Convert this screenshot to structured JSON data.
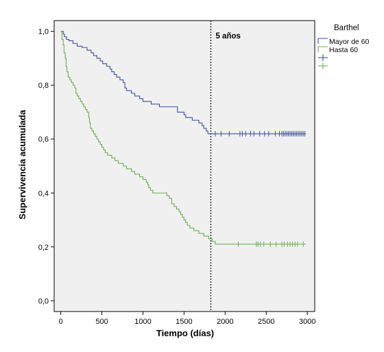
{
  "chart_data": {
    "type": "line",
    "subtype": "kaplan-meier-step",
    "xlabel": "Tiempo (días)",
    "ylabel": "Supervivencia acumulada",
    "xlim": [
      -80,
      3090
    ],
    "ylim": [
      -0.04,
      1.04
    ],
    "x_ticks": [
      {
        "value": 0,
        "label": "0"
      },
      {
        "value": 500,
        "label": "500"
      },
      {
        "value": 1000,
        "label": "1000"
      },
      {
        "value": 1500,
        "label": "1500"
      },
      {
        "value": 2000,
        "label": "2000"
      },
      {
        "value": 2500,
        "label": "2500"
      },
      {
        "value": 3000,
        "label": "3000"
      }
    ],
    "y_ticks": [
      {
        "value": 0.0,
        "label": "0,0"
      },
      {
        "value": 0.2,
        "label": "0,2"
      },
      {
        "value": 0.4,
        "label": "0,4"
      },
      {
        "value": 0.6,
        "label": "0,6"
      },
      {
        "value": 0.8,
        "label": "0,8"
      },
      {
        "value": 1.0,
        "label": "1,0"
      }
    ],
    "grid": false,
    "plot_background": "#f0f0f0",
    "reference_line": {
      "x": 1826,
      "style": "dotted",
      "label": "5 años"
    },
    "legend": {
      "title": "Barthel",
      "position": "right",
      "entries": [
        {
          "label": "Mayor de 60",
          "color": "#3d4fa0",
          "marker": "line"
        },
        {
          "label": "Hasta 60",
          "color": "#6ab04c",
          "marker": "line"
        },
        {
          "label": "",
          "color": "#3d4fa0",
          "marker": "censor"
        },
        {
          "label": "",
          "color": "#6ab04c",
          "marker": "censor"
        }
      ]
    },
    "series": [
      {
        "name": "Mayor de 60",
        "color": "#3d4fa0",
        "steps": [
          [
            0,
            1.0
          ],
          [
            30,
            0.99
          ],
          [
            45,
            0.98
          ],
          [
            70,
            0.97
          ],
          [
            100,
            0.965
          ],
          [
            150,
            0.955
          ],
          [
            200,
            0.945
          ],
          [
            260,
            0.94
          ],
          [
            320,
            0.93
          ],
          [
            370,
            0.92
          ],
          [
            400,
            0.91
          ],
          [
            440,
            0.9
          ],
          [
            480,
            0.89
          ],
          [
            510,
            0.88
          ],
          [
            560,
            0.87
          ],
          [
            600,
            0.86
          ],
          [
            620,
            0.85
          ],
          [
            650,
            0.84
          ],
          [
            680,
            0.83
          ],
          [
            720,
            0.82
          ],
          [
            760,
            0.81
          ],
          [
            780,
            0.79
          ],
          [
            800,
            0.78
          ],
          [
            860,
            0.77
          ],
          [
            900,
            0.76
          ],
          [
            960,
            0.75
          ],
          [
            1000,
            0.74
          ],
          [
            1100,
            0.73
          ],
          [
            1200,
            0.72
          ],
          [
            1330,
            0.72
          ],
          [
            1420,
            0.7
          ],
          [
            1500,
            0.69
          ],
          [
            1520,
            0.68
          ],
          [
            1600,
            0.67
          ],
          [
            1680,
            0.66
          ],
          [
            1720,
            0.65
          ],
          [
            1740,
            0.64
          ],
          [
            1770,
            0.63
          ],
          [
            1790,
            0.62
          ],
          [
            2980,
            0.62
          ]
        ],
        "censored": [
          1880,
          1950,
          2050,
          2180,
          2210,
          2250,
          2310,
          2350,
          2420,
          2480,
          2530,
          2610,
          2660,
          2690,
          2710,
          2730,
          2750,
          2770,
          2790,
          2810,
          2830,
          2850,
          2870,
          2890,
          2910,
          2930,
          2950,
          2970
        ]
      },
      {
        "name": "Hasta 60",
        "color": "#6ab04c",
        "steps": [
          [
            0,
            1.0
          ],
          [
            15,
            0.97
          ],
          [
            30,
            0.95
          ],
          [
            40,
            0.92
          ],
          [
            55,
            0.9
          ],
          [
            65,
            0.87
          ],
          [
            75,
            0.85
          ],
          [
            90,
            0.83
          ],
          [
            110,
            0.82
          ],
          [
            130,
            0.81
          ],
          [
            150,
            0.8
          ],
          [
            170,
            0.79
          ],
          [
            185,
            0.77
          ],
          [
            200,
            0.76
          ],
          [
            220,
            0.75
          ],
          [
            240,
            0.74
          ],
          [
            260,
            0.73
          ],
          [
            280,
            0.72
          ],
          [
            300,
            0.71
          ],
          [
            320,
            0.7
          ],
          [
            340,
            0.68
          ],
          [
            350,
            0.66
          ],
          [
            360,
            0.64
          ],
          [
            380,
            0.63
          ],
          [
            400,
            0.62
          ],
          [
            420,
            0.61
          ],
          [
            440,
            0.6
          ],
          [
            460,
            0.59
          ],
          [
            480,
            0.58
          ],
          [
            500,
            0.57
          ],
          [
            520,
            0.56
          ],
          [
            540,
            0.55
          ],
          [
            570,
            0.54
          ],
          [
            620,
            0.53
          ],
          [
            660,
            0.52
          ],
          [
            700,
            0.51
          ],
          [
            760,
            0.5
          ],
          [
            800,
            0.49
          ],
          [
            860,
            0.48
          ],
          [
            900,
            0.47
          ],
          [
            960,
            0.46
          ],
          [
            1000,
            0.45
          ],
          [
            1040,
            0.44
          ],
          [
            1060,
            0.43
          ],
          [
            1070,
            0.42
          ],
          [
            1090,
            0.41
          ],
          [
            1120,
            0.4
          ],
          [
            1230,
            0.4
          ],
          [
            1290,
            0.39
          ],
          [
            1320,
            0.38
          ],
          [
            1350,
            0.36
          ],
          [
            1380,
            0.35
          ],
          [
            1410,
            0.34
          ],
          [
            1440,
            0.33
          ],
          [
            1460,
            0.32
          ],
          [
            1480,
            0.31
          ],
          [
            1500,
            0.3
          ],
          [
            1520,
            0.29
          ],
          [
            1540,
            0.28
          ],
          [
            1570,
            0.27
          ],
          [
            1620,
            0.26
          ],
          [
            1680,
            0.25
          ],
          [
            1740,
            0.24
          ],
          [
            1800,
            0.23
          ],
          [
            1840,
            0.22
          ],
          [
            1880,
            0.21
          ],
          [
            2980,
            0.21
          ]
        ],
        "censored": [
          2160,
          2380,
          2400,
          2430,
          2470,
          2550,
          2620,
          2690,
          2720,
          2760,
          2790,
          2820,
          2850,
          2880,
          2950
        ]
      }
    ]
  }
}
